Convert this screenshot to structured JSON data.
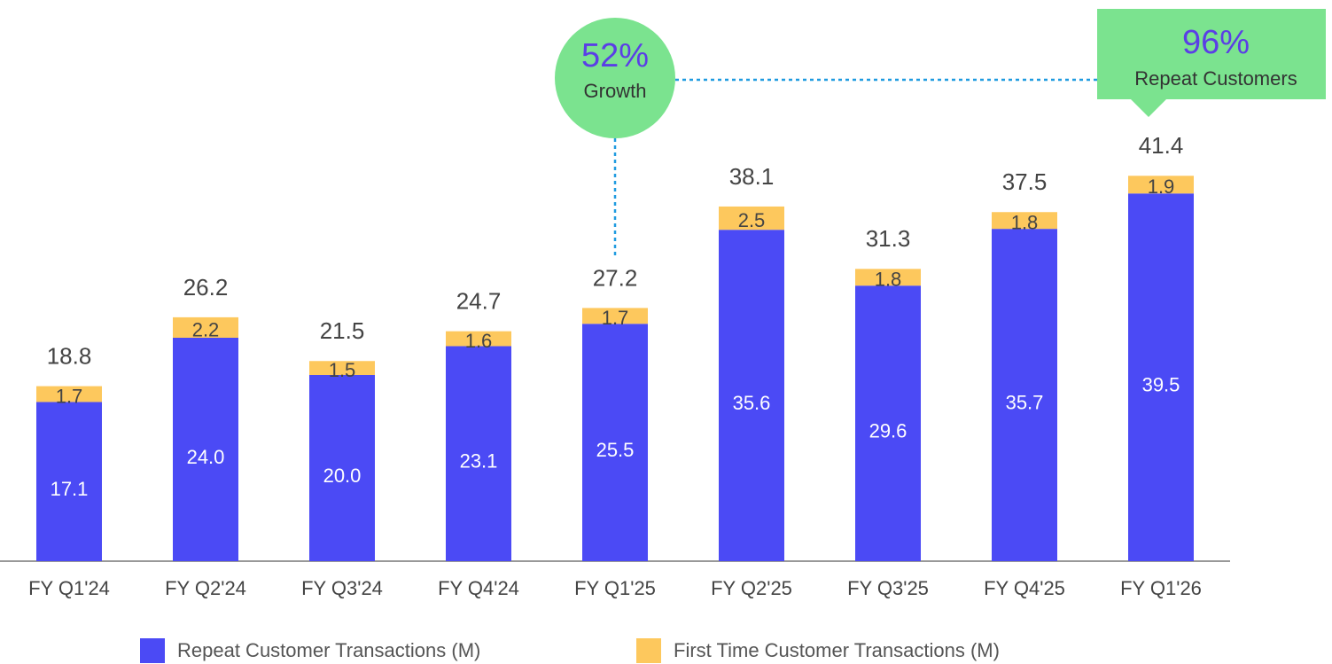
{
  "chart_data": {
    "type": "stacked_bar",
    "categories": [
      "FY Q1'24",
      "FY Q2'24",
      "FY Q3'24",
      "FY Q4'24",
      "FY Q1'25",
      "FY Q2'25",
      "FY Q3'25",
      "FY Q4'25",
      "FY Q1'26"
    ],
    "series": [
      {
        "name": "Repeat Customer Transactions (M)",
        "color": "#4b4af5",
        "values": [
          17.1,
          24,
          20,
          23.1,
          25.5,
          35.6,
          29.6,
          35.7,
          39.5
        ],
        "value_labels": [
          "17.1",
          "24.0",
          "20.0",
          "23.1",
          "25.5",
          "35.6",
          "29.6",
          "35.7",
          "39.5"
        ]
      },
      {
        "name": "First Time Customer Transactions (M)",
        "color": "#fdc85d",
        "values": [
          1.7,
          2.2,
          1.5,
          1.6,
          1.7,
          2.5,
          1.8,
          1.8,
          1.9
        ]
      }
    ],
    "totals": [
      18.8,
      26.2,
      21.5,
      24.7,
      27.2,
      38.1,
      31.3,
      37.5,
      41.4
    ],
    "ylim": [
      0,
      45
    ],
    "annotations": [
      {
        "value": "52%",
        "text": "Growth"
      },
      {
        "value": "96%",
        "text": "Repeat Customers"
      }
    ],
    "annotation_color": "#7be38f"
  }
}
